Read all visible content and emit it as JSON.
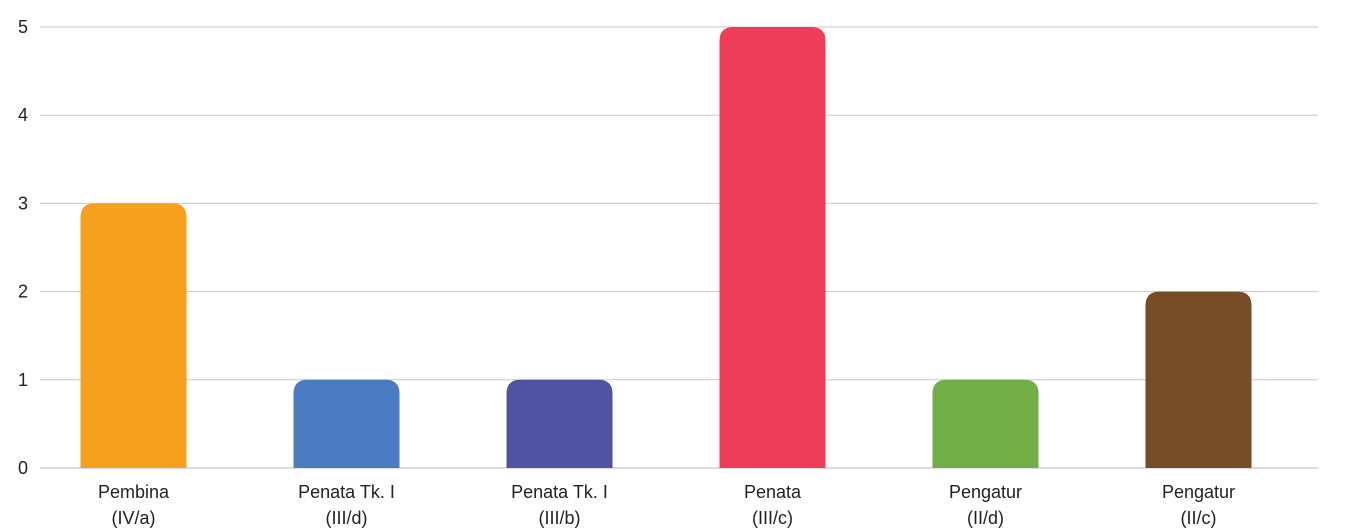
{
  "chart_data": {
    "type": "bar",
    "categories": [
      [
        "Pembina",
        "(IV/a)"
      ],
      [
        "Penata Tk. I",
        "(III/d)"
      ],
      [
        "Penata Tk. I",
        "(III/b)"
      ],
      [
        "Penata",
        "(III/c)"
      ],
      [
        "Pengatur",
        "(II/d)"
      ],
      [
        "Pengatur",
        "(II/c)"
      ]
    ],
    "values": [
      3,
      1,
      1,
      5,
      1,
      2
    ],
    "colors": [
      "#F7A01E",
      "#4B7BC0",
      "#5252A3",
      "#EE3D58",
      "#71AF46",
      "#774D27"
    ],
    "ylim": [
      0,
      5
    ],
    "yticks": [
      "0",
      "1",
      "2",
      "3",
      "4",
      "5"
    ],
    "grid": true,
    "legend": "none"
  }
}
